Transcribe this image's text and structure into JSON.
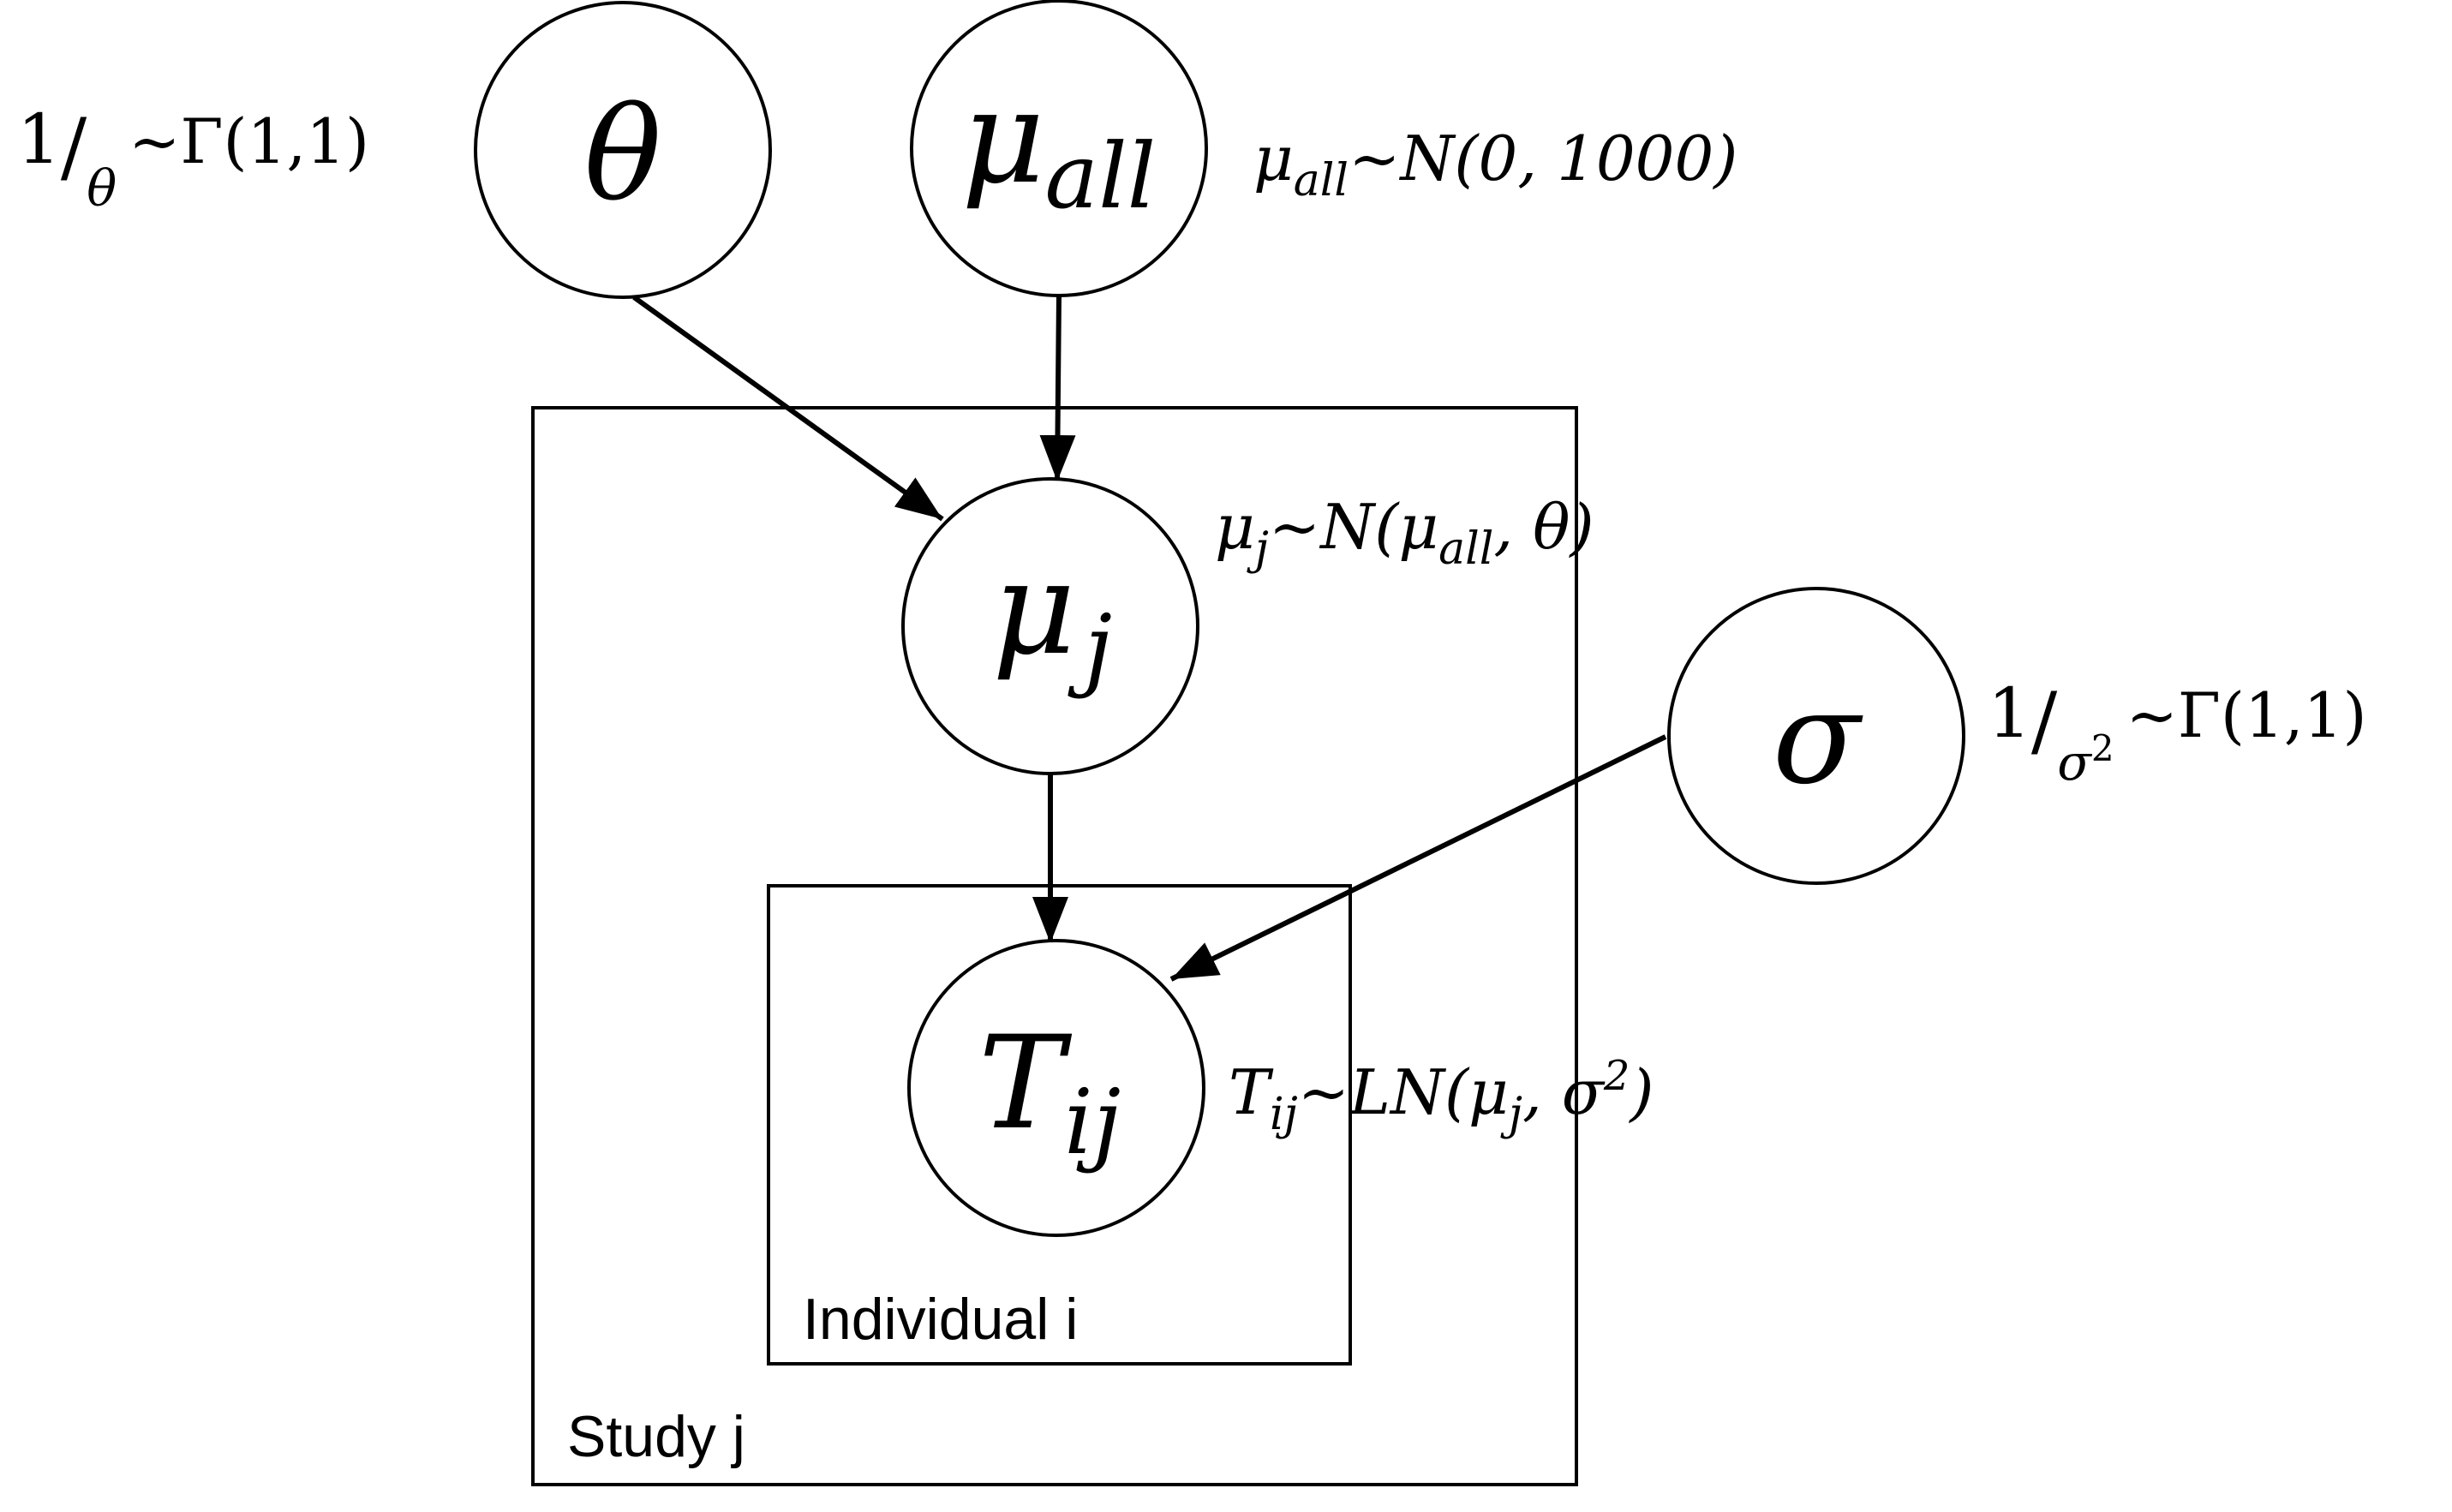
{
  "plates": {
    "study": {
      "label": "Study j"
    },
    "individual": {
      "label": "Individual i"
    }
  },
  "nodes": {
    "theta": {
      "base": "θ",
      "sub": ""
    },
    "mu_all": {
      "base": "μ",
      "sub": "all"
    },
    "mu_j": {
      "base": "μ",
      "sub": "j"
    },
    "sigma": {
      "base": "σ",
      "sub": ""
    },
    "T_ij": {
      "base": "T",
      "sub": "ij"
    }
  },
  "priors": {
    "theta": {
      "num": "1",
      "slash": "/",
      "den": "θ",
      "dist": "~Γ(1,1)"
    },
    "mu_all": {
      "base": "μ",
      "sub": "all",
      "dist": "~N(0, 1000)"
    },
    "mu_j": {
      "base": "μ",
      "sub": "j",
      "dist_a": "~N(",
      "arg_base": "μ",
      "arg_sub": "all",
      "dist_b": ", θ)"
    },
    "sigma": {
      "num": "1",
      "slash": "/",
      "den": "σ",
      "den_sup": "2",
      "dist": "~Γ(1,1)"
    },
    "T_ij": {
      "base": "T",
      "sub": "ij",
      "dist_a": "~LN(",
      "arg_base": "μ",
      "arg_sub": "j",
      "dist_b": ", σ",
      "sup": "2",
      "dist_c": ")"
    }
  }
}
